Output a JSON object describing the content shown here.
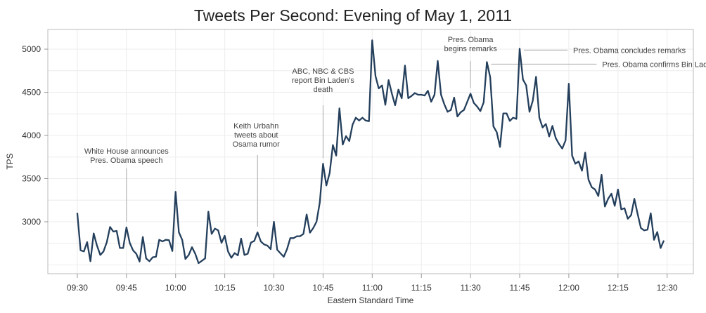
{
  "chart_data": {
    "type": "line",
    "title": "Tweets Per Second: Evening of May 1, 2011",
    "xlabel": "Eastern Standard Time",
    "ylabel": "TPS",
    "ylim": [
      2398,
      5228
    ],
    "xlim_minutes_after_0930": [
      -9,
      188
    ],
    "grid": true,
    "yticks": [
      3000,
      3500,
      4000,
      4500,
      5000
    ],
    "xticks": [
      {
        "label": "09:30",
        "minute": 0
      },
      {
        "label": "09:45",
        "minute": 15
      },
      {
        "label": "10:00",
        "minute": 30
      },
      {
        "label": "10:15",
        "minute": 45
      },
      {
        "label": "10:30",
        "minute": 60
      },
      {
        "label": "10:45",
        "minute": 75
      },
      {
        "label": "11:00",
        "minute": 90
      },
      {
        "label": "11:15",
        "minute": 105
      },
      {
        "label": "11:30",
        "minute": 120
      },
      {
        "label": "11:45",
        "minute": 135
      },
      {
        "label": "12:00",
        "minute": 150
      },
      {
        "label": "12:15",
        "minute": 165
      },
      {
        "label": "12:30",
        "minute": 180
      }
    ],
    "series": [
      {
        "name": "TPS",
        "color": "#243f5c",
        "start": "09:30",
        "interval_minutes": 1,
        "values": [
          3103,
          2669,
          2656,
          2764,
          2542,
          2865,
          2724,
          2615,
          2656,
          2764,
          2940,
          2886,
          2894,
          2696,
          2696,
          2935,
          2756,
          2669,
          2629,
          2539,
          2824,
          2575,
          2542,
          2588,
          2594,
          2791,
          2772,
          2791,
          2786,
          2661,
          3347,
          2878,
          2791,
          2569,
          2615,
          2705,
          2629,
          2520,
          2547,
          2575,
          3117,
          2859,
          2921,
          2900,
          2756,
          2837,
          2656,
          2583,
          2637,
          2610,
          2805,
          2615,
          2629,
          2759,
          2778,
          2878,
          2772,
          2737,
          2724,
          2683,
          3000,
          2675,
          2634,
          2594,
          2683,
          2810,
          2810,
          2832,
          2832,
          2859,
          3084,
          2873,
          2927,
          3000,
          3225,
          3672,
          3420,
          3564,
          3889,
          3767,
          4314,
          3894,
          3992,
          3935,
          4125,
          4206,
          4173,
          4206,
          4173,
          4165,
          5103,
          4688,
          4545,
          4580,
          4355,
          4642,
          4485,
          4350,
          4531,
          4431,
          4810,
          4431,
          4458,
          4491,
          4472,
          4472,
          4463,
          4518,
          4390,
          4472,
          4864,
          4472,
          4363,
          4274,
          4295,
          4439,
          4220,
          4268,
          4295,
          4390,
          4485,
          4377,
          4336,
          4282,
          4382,
          4851,
          4675,
          4106,
          4038,
          3867,
          4255,
          4255,
          4168,
          4206,
          4192,
          5005,
          4648,
          4580,
          4274,
          4404,
          4680,
          4206,
          4092,
          4133,
          3989,
          4111,
          3970,
          3902,
          3848,
          3943,
          4599,
          3767,
          3672,
          3699,
          3591,
          3802,
          3488,
          3401,
          3374,
          3298,
          3545,
          3176,
          3266,
          3325,
          3184,
          3374,
          3144,
          3157,
          3035,
          3076,
          3266,
          3089,
          2927,
          2900,
          2908,
          3098,
          2791,
          2881,
          2696,
          2783
        ]
      }
    ],
    "annotations": [
      {
        "lines": [
          "White House announces",
          "Pres. Obama speech"
        ],
        "minute": 15,
        "style": "vertical"
      },
      {
        "lines": [
          "Keith Urbahn",
          "tweets about",
          "Osama rumor"
        ],
        "minute": 55,
        "style": "vertical"
      },
      {
        "lines": [
          "ABC, NBC & CBS",
          "report Bin Laden's",
          "death"
        ],
        "minute": 75,
        "style": "vertical"
      },
      {
        "lines": [
          "Pres. Obama",
          "begins remarks"
        ],
        "minute": 120,
        "style": "vertical"
      },
      {
        "lines": [
          "Pres. Obama confirms Bin Laden's death"
        ],
        "minute": 125,
        "style": "horizontal"
      },
      {
        "lines": [
          "Pres. Obama concludes remarks"
        ],
        "minute": 135,
        "style": "horizontal"
      }
    ]
  }
}
